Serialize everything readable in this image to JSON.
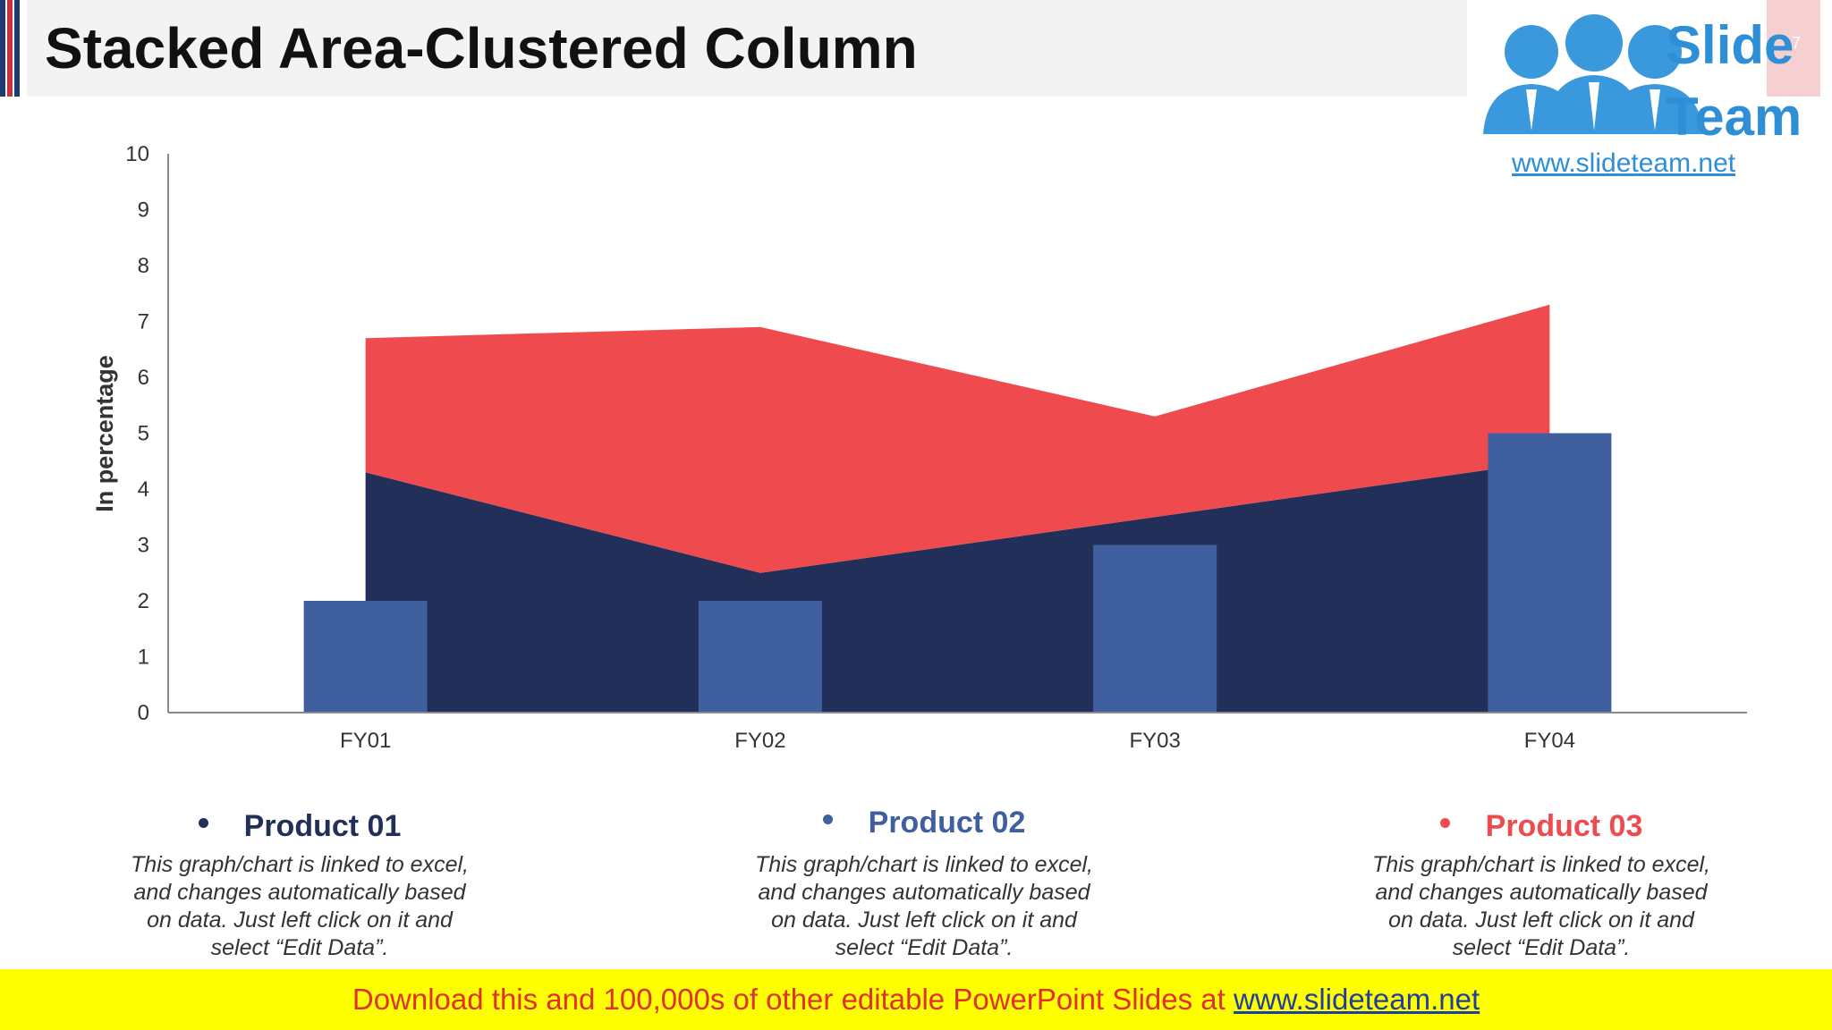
{
  "slide": {
    "title": "Stacked Area-Clustered Column"
  },
  "logo": {
    "line1": "Slide",
    "line2": "Team",
    "url": "www.slideteam.net",
    "page_number": "7"
  },
  "colors": {
    "product01": "#223059",
    "product02": "#3f5f9e",
    "product03": "#ef4b4f",
    "footer_bg": "#ffff00",
    "footer_text": "#e0302f",
    "footer_link": "#1f3f9e",
    "logo": "#2f8fd6"
  },
  "chart_data": {
    "type": "area+bar",
    "categories": [
      "FY01",
      "FY02",
      "FY03",
      "FY04"
    ],
    "ylabel": "In percentage",
    "ylim": [
      0,
      10
    ],
    "yticks": [
      "0",
      "1",
      "2",
      "3",
      "4",
      "5",
      "6",
      "7",
      "8",
      "9",
      "10"
    ],
    "grid": false,
    "series": [
      {
        "name": "Product 01",
        "chart": "stacked-area",
        "values": [
          4.3,
          2.5,
          3.5,
          4.5
        ]
      },
      {
        "name": "Product 03",
        "chart": "stacked-area",
        "values": [
          2.4,
          4.4,
          1.8,
          2.8
        ]
      },
      {
        "name": "Product 02",
        "chart": "clustered-column",
        "values": [
          2,
          2,
          3,
          5
        ]
      }
    ]
  },
  "legend": [
    {
      "label": "Product 01",
      "desc": [
        "This graph/chart is linked to excel,",
        "and changes automatically based",
        "on data. Just left click on it and",
        "select “Edit Data”."
      ]
    },
    {
      "label": "Product 02",
      "desc": [
        "This graph/chart is linked to excel,",
        "and changes automatically based",
        "on data. Just left click on it and",
        "select “Edit Data”."
      ]
    },
    {
      "label": "Product 03",
      "desc": [
        "This graph/chart is linked to excel,",
        "and changes automatically based",
        "on data. Just left click on it and",
        "select “Edit Data”."
      ]
    }
  ],
  "footer": {
    "text": "Download this and 100,000s of other editable PowerPoint Slides at ",
    "link": "www.slideteam.net"
  }
}
